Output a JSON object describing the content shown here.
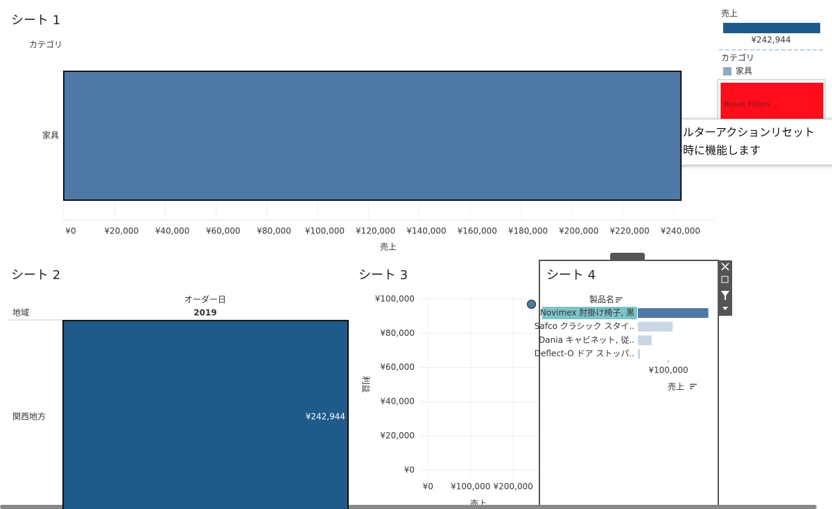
{
  "sheets": [
    {
      "title": "シート 1",
      "type": "hbar",
      "category_header": "カテゴリ",
      "x_axis_label": "売上",
      "categories": [
        "家具"
      ],
      "values": [
        242944
      ],
      "color": "#4e79a7",
      "xlim": [
        0,
        256000
      ],
      "xticks": [
        {
          "value": 0,
          "label": "¥0"
        },
        {
          "value": 20000,
          "label": "¥20,000"
        },
        {
          "value": 40000,
          "label": "¥40,000"
        },
        {
          "value": 60000,
          "label": "¥60,000"
        },
        {
          "value": 80000,
          "label": "¥80,000"
        },
        {
          "value": 100000,
          "label": "¥100,000"
        },
        {
          "value": 120000,
          "label": "¥120,000"
        },
        {
          "value": 140000,
          "label": "¥140,000"
        },
        {
          "value": 160000,
          "label": "¥160,000"
        },
        {
          "value": 180000,
          "label": "¥180,000"
        },
        {
          "value": 200000,
          "label": "¥200,000"
        },
        {
          "value": 220000,
          "label": "¥220,000"
        },
        {
          "value": 240000,
          "label": "¥240,000"
        }
      ]
    },
    {
      "title": "シート 2",
      "type": "table",
      "row_header": "地域",
      "column_header": "オーダー日",
      "columns": [
        "2019"
      ],
      "rows": [
        "関西地方"
      ],
      "values": [
        242944
      ],
      "value_labels": [
        "¥242,944"
      ],
      "color": "#1f5a8a"
    },
    {
      "title": "シート 3",
      "type": "scatter",
      "x_axis_label": "売上",
      "y_axis_label": "利益",
      "x": [
        242944
      ],
      "values": [
        97000
      ],
      "color": "#4e79a7",
      "xlim": [
        -20000,
        260000
      ],
      "ylim": [
        -4500,
        102800
      ],
      "xticks": [
        {
          "value": 0,
          "label": "¥0"
        },
        {
          "value": 100000,
          "label": "¥100,000"
        },
        {
          "value": 200000,
          "label": "¥200,000"
        }
      ],
      "yticks": [
        {
          "value": 0,
          "label": "¥0"
        },
        {
          "value": 20000,
          "label": "¥20,000"
        },
        {
          "value": 40000,
          "label": "¥40,000"
        },
        {
          "value": 60000,
          "label": "¥60,000"
        },
        {
          "value": 80000,
          "label": "¥80,000"
        },
        {
          "value": 100000,
          "label": "¥100,000"
        }
      ],
      "grid": true
    },
    {
      "title": "シート 4",
      "type": "hbar-small",
      "category_header": "製品名",
      "x_axis_label": "売上",
      "categories": [
        "Novimex 肘掛け椅子, 黒",
        "Safco クラシック スタイ..",
        "Dania キャビネット, 従..",
        "Deflect-O ドア ストッパ.."
      ],
      "values": [
        231000,
        114000,
        45000,
        7000
      ],
      "colors": [
        "#4e79a7",
        "#c9d6e3",
        "#c9d6e3",
        "#c9d6e3"
      ],
      "xlim": [
        0,
        250000
      ],
      "xticks": [
        {
          "value": 100000,
          "label": "¥100,000"
        }
      ]
    }
  ],
  "legend": {
    "measure_title": "売上",
    "measure_label": "¥242,944",
    "measure_color": "#1f5a8a",
    "color_title": "カテゴリ",
    "color_items": [
      "家具"
    ],
    "item_color": "#8fa9c0"
  },
  "button": {
    "label": "Reset Filters",
    "color": "#ff0d1a"
  },
  "tooltip": {
    "lines": [
      "フィルターアクションリセット",
      "赤の時に機能します"
    ]
  }
}
